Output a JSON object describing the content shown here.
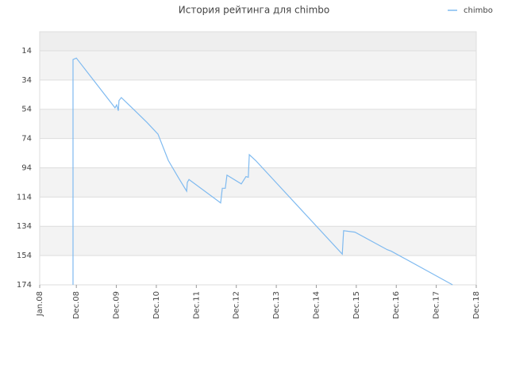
{
  "chart_data": {
    "type": "line",
    "title": "История рейтинга для chimbo",
    "x": [
      10,
      10,
      11,
      22.6,
      23.1,
      23.6,
      23.8,
      24.5,
      28.6,
      32.2,
      35.5,
      38.6,
      41.7,
      44.1,
      44.3,
      44.8,
      54.3,
      54.8,
      55.7,
      56.2,
      60.5,
      61.9,
      62.6,
      62.9,
      64.8,
      90.8,
      91.2,
      94.6,
      104.3,
      105.5,
      116.7,
      123.9
    ],
    "series": [
      {
        "name": "chimbo",
        "color": "#7fbaf0",
        "values": [
          174,
          20,
          19,
          53,
          51,
          55,
          48,
          46,
          55,
          63,
          71,
          89,
          101,
          110,
          104,
          102,
          118,
          108,
          108,
          99,
          105,
          100,
          100.5,
          85,
          89,
          153,
          137,
          138,
          150,
          151,
          165,
          174
        ]
      }
    ],
    "xlim": [
      0,
      131
    ],
    "xticks": [
      {
        "value": 0,
        "label": "Jan.08"
      },
      {
        "value": 11,
        "label": "Dec.08"
      },
      {
        "value": 23,
        "label": "Dec.09"
      },
      {
        "value": 35,
        "label": "Dec.10"
      },
      {
        "value": 47,
        "label": "Dec.11"
      },
      {
        "value": 59,
        "label": "Dec.12"
      },
      {
        "value": 71,
        "label": "Dec.13"
      },
      {
        "value": 83,
        "label": "Dec.14"
      },
      {
        "value": 95,
        "label": "Dec.15"
      },
      {
        "value": 107,
        "label": "Dec.16"
      },
      {
        "value": 119,
        "label": "Dec.17"
      },
      {
        "value": 131,
        "label": "Dec.18"
      }
    ],
    "ylim": [
      1,
      174
    ],
    "y_inverted": true,
    "yticks": [
      14,
      34,
      54,
      74,
      94,
      114,
      134,
      154,
      174
    ],
    "grid": true,
    "legend": "top-right"
  }
}
